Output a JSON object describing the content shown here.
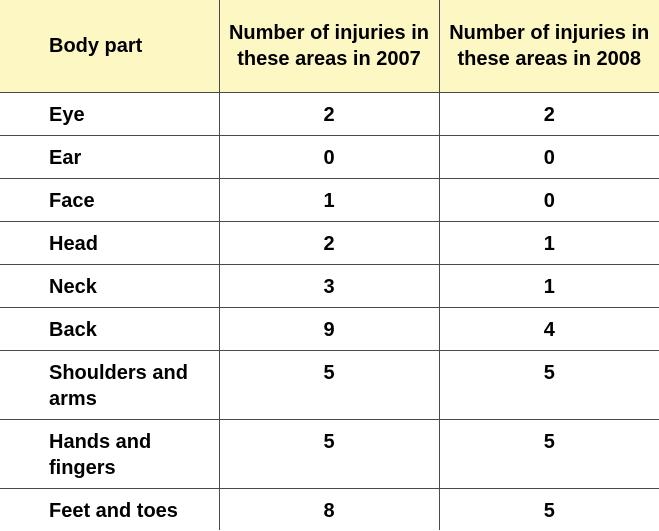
{
  "table": {
    "headers": {
      "body_part": "Body part",
      "year_2007": "Number of injuries in these areas in 2007",
      "year_2008": "Number of injuries in these areas in 2008"
    },
    "rows": [
      {
        "part": "Eye",
        "y2007": "2",
        "y2008": "2"
      },
      {
        "part": "Ear",
        "y2007": "0",
        "y2008": "0"
      },
      {
        "part": "Face",
        "y2007": "1",
        "y2008": "0"
      },
      {
        "part": "Head",
        "y2007": "2",
        "y2008": "1"
      },
      {
        "part": "Neck",
        "y2007": "3",
        "y2008": "1"
      },
      {
        "part": "Back",
        "y2007": "9",
        "y2008": "4"
      },
      {
        "part": "Shoulders and arms",
        "y2007": "5",
        "y2008": "5"
      },
      {
        "part": "Hands and fingers",
        "y2007": "5",
        "y2008": "5"
      },
      {
        "part": "Feet and toes",
        "y2007": "8",
        "y2008": "5"
      }
    ]
  },
  "colors": {
    "header_background": "#fdf7c4",
    "border": "#4a4a4a",
    "text": "#000000"
  }
}
